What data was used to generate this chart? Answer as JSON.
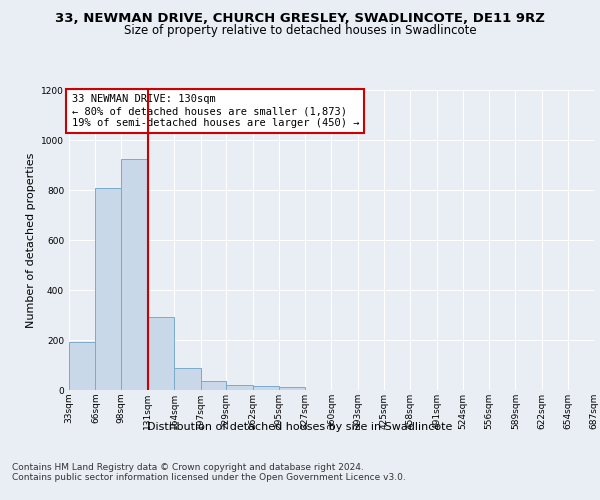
{
  "title1": "33, NEWMAN DRIVE, CHURCH GRESLEY, SWADLINCOTE, DE11 9RZ",
  "title2": "Size of property relative to detached houses in Swadlincote",
  "xlabel": "Distribution of detached houses by size in Swadlincote",
  "ylabel": "Number of detached properties",
  "bar_color": "#c8d8e8",
  "bar_edge_color": "#7aaaca",
  "annotation_box_text": "33 NEWMAN DRIVE: 130sqm\n← 80% of detached houses are smaller (1,873)\n19% of semi-detached houses are larger (450) →",
  "annotation_box_color": "#ffffff",
  "annotation_box_edge_color": "#cc0000",
  "marker_line_color": "#cc0000",
  "footer": "Contains HM Land Registry data © Crown copyright and database right 2024.\nContains public sector information licensed under the Open Government Licence v3.0.",
  "bin_edges": [
    33,
    66,
    98,
    131,
    164,
    197,
    229,
    262,
    295,
    327,
    360,
    393,
    425,
    458,
    491,
    524,
    556,
    589,
    622,
    654,
    687
  ],
  "bin_labels": [
    "33sqm",
    "66sqm",
    "98sqm",
    "131sqm",
    "164sqm",
    "197sqm",
    "229sqm",
    "262sqm",
    "295sqm",
    "327sqm",
    "360sqm",
    "393sqm",
    "425sqm",
    "458sqm",
    "491sqm",
    "524sqm",
    "556sqm",
    "589sqm",
    "622sqm",
    "654sqm",
    "687sqm"
  ],
  "values": [
    193,
    810,
    926,
    293,
    88,
    35,
    20,
    17,
    12,
    0,
    0,
    0,
    0,
    0,
    0,
    0,
    0,
    0,
    0,
    0
  ],
  "ylim": [
    0,
    1200
  ],
  "yticks": [
    0,
    200,
    400,
    600,
    800,
    1000,
    1200
  ],
  "background_color": "#e8eef4",
  "plot_background_color": "#e8eef4",
  "grid_color": "#ffffff",
  "title1_fontsize": 9.5,
  "title2_fontsize": 8.5,
  "ylabel_fontsize": 8,
  "xlabel_fontsize": 8,
  "tick_fontsize": 6.5,
  "footer_fontsize": 6.5,
  "ann_fontsize": 7.5
}
